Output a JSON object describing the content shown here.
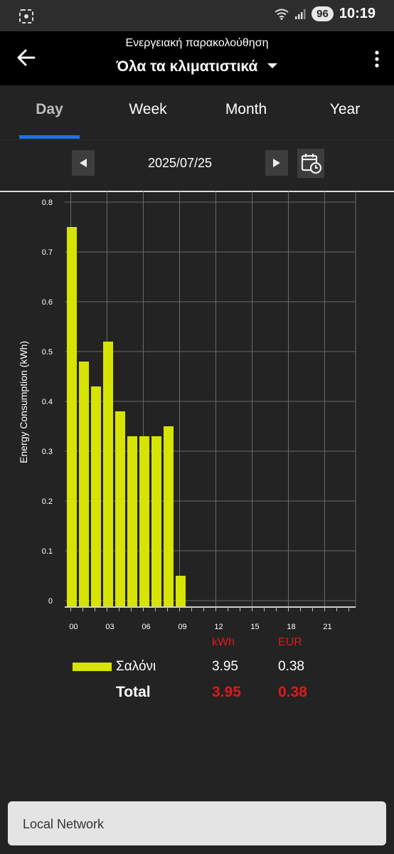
{
  "status_bar": {
    "time": "10:19",
    "battery": "96"
  },
  "header": {
    "subtitle": "Ενεργειακή παρακολούθηση",
    "title": "Όλα τα κλιματιστικά"
  },
  "tabs": [
    {
      "label": "Day",
      "active": true
    },
    {
      "label": "Week",
      "active": false
    },
    {
      "label": "Month",
      "active": false
    },
    {
      "label": "Year",
      "active": false
    }
  ],
  "date_nav": {
    "date": "2025/07/25"
  },
  "chart_data": {
    "type": "bar",
    "ylabel": "Energy Consumption (kWh)",
    "xlabel": "",
    "ylim": [
      0,
      0.8
    ],
    "y_ticks": [
      "0",
      "0.1",
      "0.2",
      "0.3",
      "0.4",
      "0.5",
      "0.6",
      "0.7",
      "0.8"
    ],
    "x_ticks": [
      "00",
      "03",
      "06",
      "09",
      "12",
      "15",
      "18",
      "21"
    ],
    "categories": [
      "00",
      "01",
      "02",
      "03",
      "04",
      "05",
      "06",
      "07",
      "08",
      "09"
    ],
    "series": [
      {
        "name": "Σαλόνι",
        "color": "#d7e300",
        "values": [
          0.75,
          0.48,
          0.43,
          0.52,
          0.38,
          0.33,
          0.33,
          0.33,
          0.35,
          0.05
        ]
      }
    ],
    "grid": true
  },
  "legend": {
    "unit_kwh": "kWh",
    "unit_eur": "EUR",
    "items": [
      {
        "name": "Σαλόνι",
        "kwh": "3.95",
        "eur": "0.38"
      }
    ],
    "total_label": "Total",
    "total_kwh": "3.95",
    "total_eur": "0.38"
  },
  "bottom": {
    "label": "Local Network"
  }
}
